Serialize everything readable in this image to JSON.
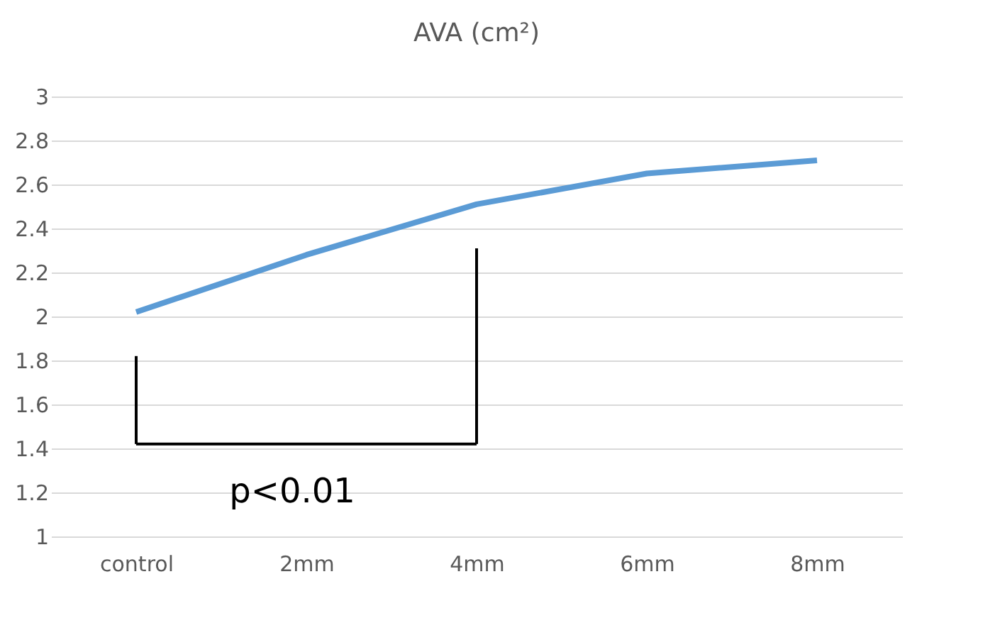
{
  "chart_data": {
    "type": "line",
    "title": "AVA (cm²)",
    "categories": [
      "control",
      "2mm",
      "4mm",
      "6mm",
      "8mm"
    ],
    "series": [
      {
        "color": "#5b9bd5",
        "values": [
          2.02,
          2.28,
          2.51,
          2.65,
          2.71
        ]
      }
    ],
    "ylim": [
      1,
      3
    ],
    "yticks": [
      1,
      1.2,
      1.4,
      1.6,
      1.8,
      2,
      2.2,
      2.4,
      2.6,
      2.8,
      3
    ],
    "grid": "y",
    "marker": "none",
    "line_style": "solid",
    "annotations": [
      "p<0.01"
    ]
  }
}
